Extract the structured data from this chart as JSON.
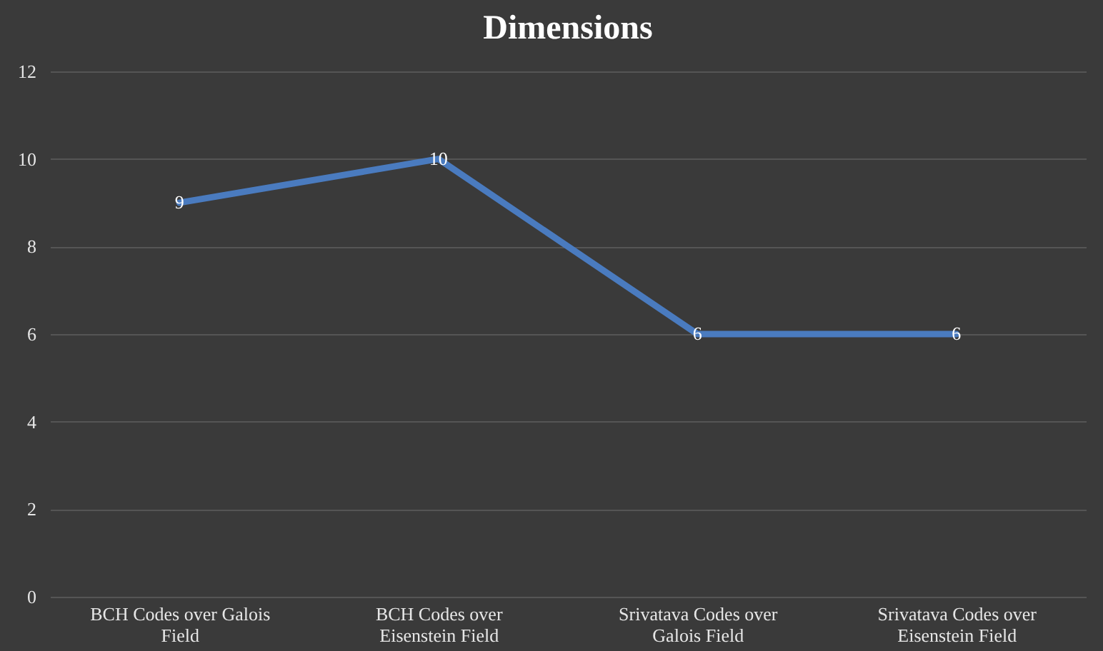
{
  "chart_data": {
    "type": "line",
    "title": "Dimensions",
    "categories": [
      "BCH Codes over Galois Field",
      "BCH Codes over Eisenstein Field",
      "Srivatava Codes over Galois Field",
      "Srivatava Codes over Eisenstein Field"
    ],
    "series": [
      {
        "color": "#4a7bbf",
        "values": [
          9,
          10,
          6,
          6
        ]
      }
    ],
    "ylim": [
      0,
      12
    ],
    "yticks": [
      0,
      2,
      4,
      6,
      8,
      10,
      12
    ],
    "grid": "y",
    "data_labels": true,
    "marker": "none",
    "line_style": "solid"
  }
}
